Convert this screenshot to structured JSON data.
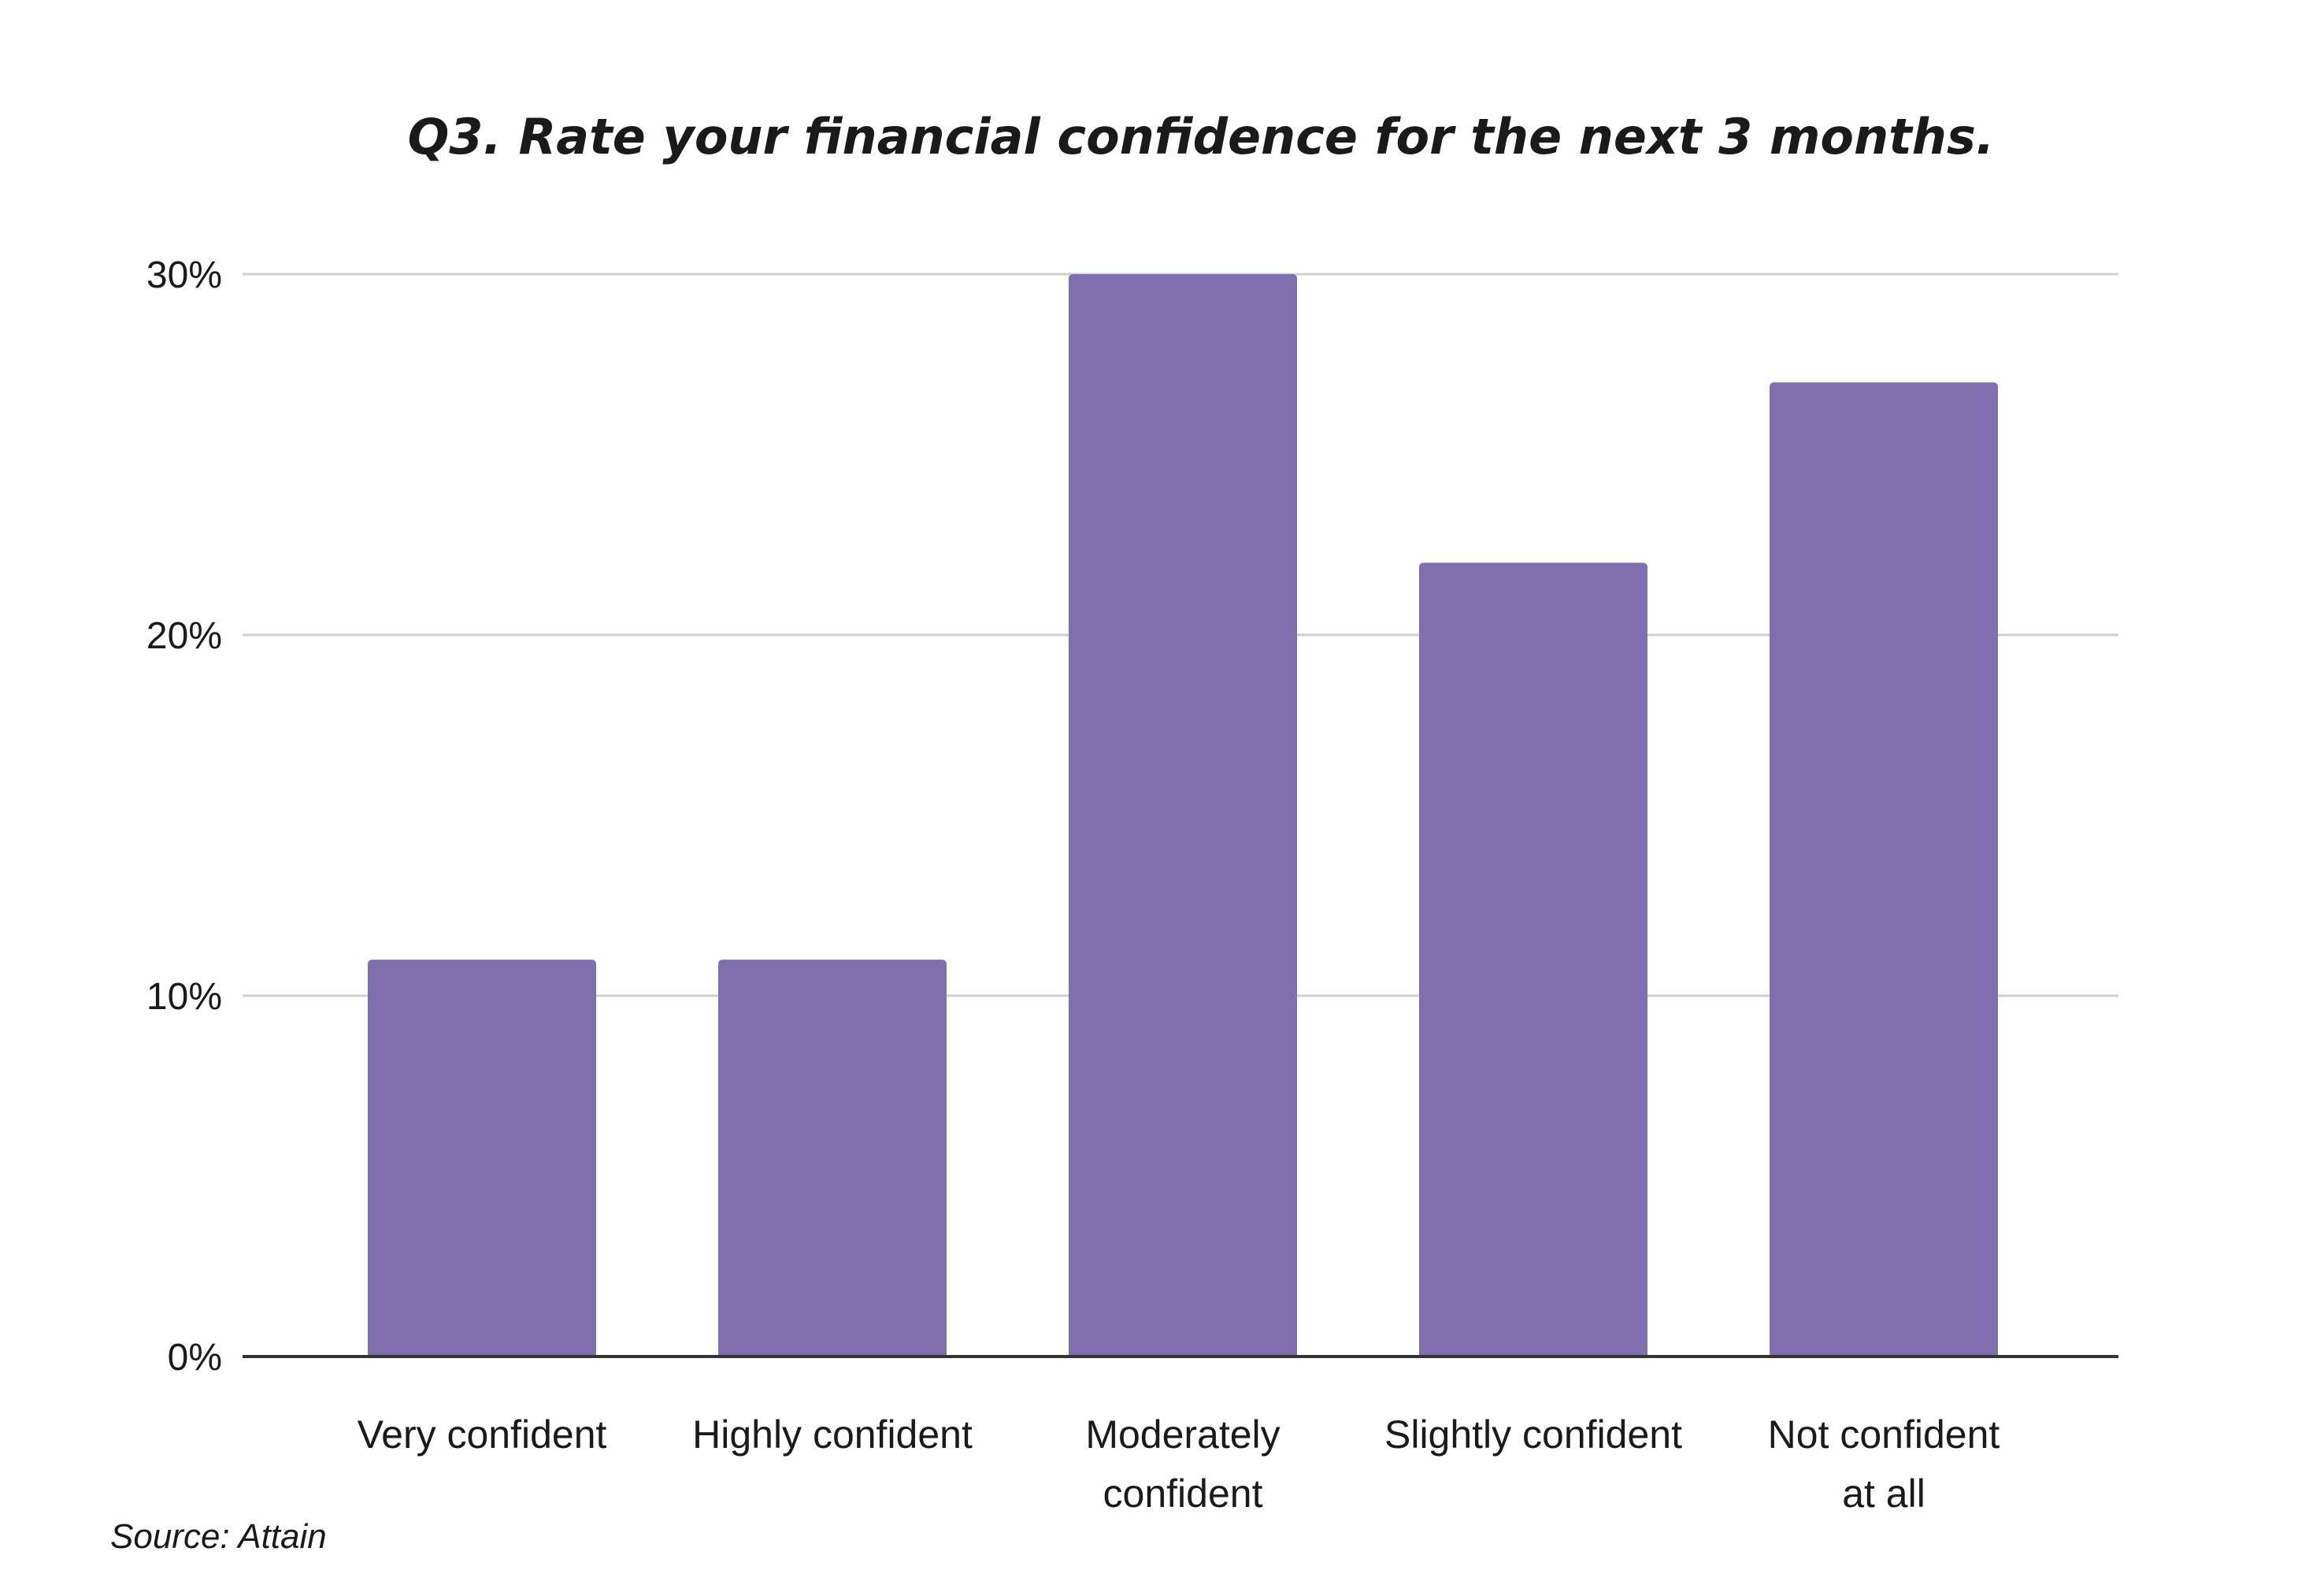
{
  "chart_data": {
    "type": "bar",
    "title": "Q3. Rate your financial confidence for the next 3 months.",
    "categories": [
      [
        "Very confident"
      ],
      [
        "Highly confident"
      ],
      [
        "Moderately",
        "confident"
      ],
      [
        "Slightly confident"
      ],
      [
        "Not confident",
        "at all"
      ]
    ],
    "values": [
      11,
      11,
      30,
      22,
      27
    ],
    "ylim": [
      0,
      30
    ],
    "yticks": [
      0,
      10,
      20,
      30
    ],
    "ytick_labels": [
      "0%",
      "10%",
      "20%",
      "30%"
    ],
    "grid": true,
    "bar_color": "#7f6faf",
    "source": "Source: Attain"
  }
}
